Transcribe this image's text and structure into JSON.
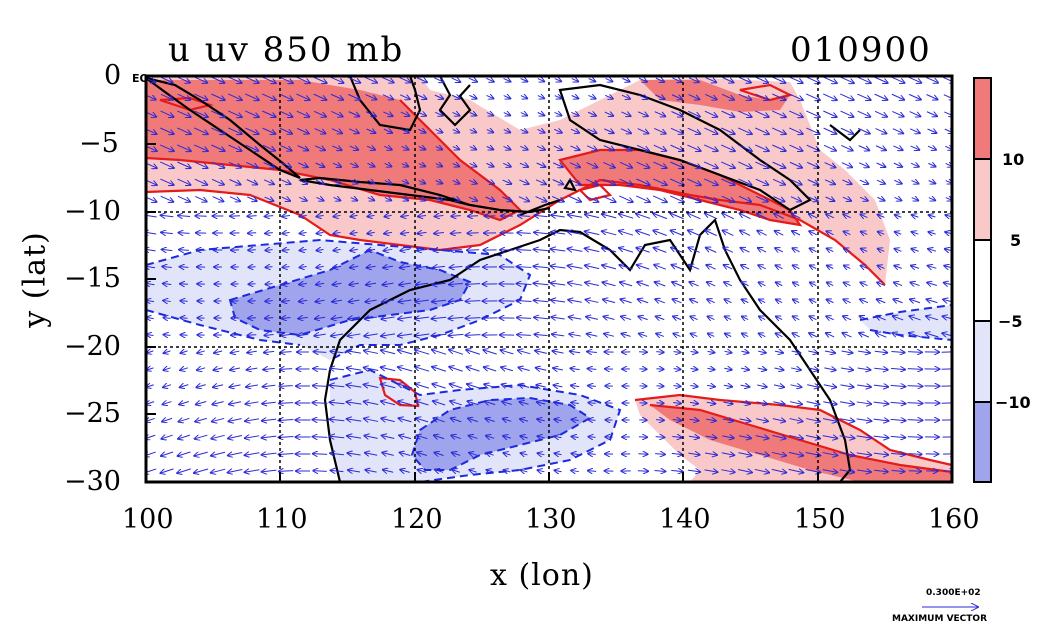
{
  "header": {
    "title_left": "u uv 850 mb",
    "title_right": "010900"
  },
  "axes": {
    "xlabel": "x (lon)",
    "ylabel": "y (lat)",
    "x_ticks": [
      "100",
      "110",
      "120",
      "130",
      "140",
      "150",
      "160"
    ],
    "y_ticks": [
      "0",
      "−5",
      "−10",
      "−15",
      "−20",
      "−25",
      "−30"
    ],
    "corner_label": "EQ"
  },
  "colorbar": {
    "labels": [
      "10",
      "5",
      "−5",
      "−10"
    ],
    "colors": [
      "#f07a7a",
      "#f9c8c8",
      "#ffffff",
      "#e2e4fa",
      "#9fa4ec"
    ]
  },
  "vector_key": {
    "value": "0.300E+02",
    "label": "MAXIMUM VECTOR"
  },
  "chart_data": {
    "type": "heatmap",
    "title": "u uv 850 mb",
    "subtitle": "010900",
    "xlabel": "x (lon)",
    "ylabel": "y (lat)",
    "xlim": [
      100,
      160
    ],
    "ylim": [
      -30,
      0
    ],
    "x_ticks": [
      100,
      110,
      120,
      130,
      140,
      150,
      160
    ],
    "y_ticks": [
      0,
      -5,
      -10,
      -15,
      -20,
      -25,
      -30
    ],
    "contour_levels": [
      -10,
      -5,
      5,
      10
    ],
    "grid": true,
    "legend": "right"
  }
}
